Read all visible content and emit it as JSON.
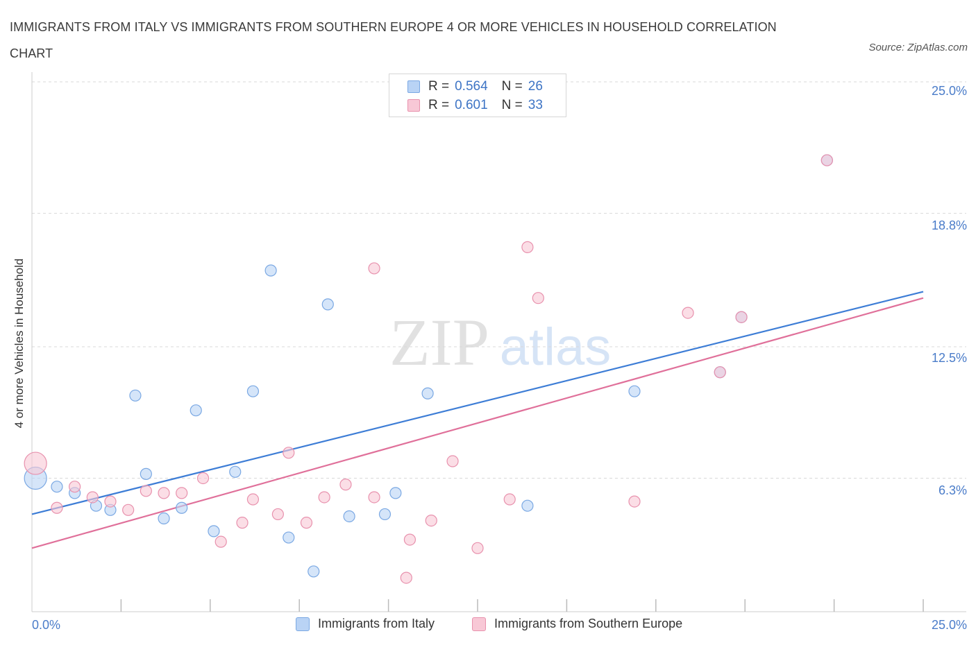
{
  "title": "IMMIGRANTS FROM ITALY VS IMMIGRANTS FROM SOUTHERN EUROPE 4 OR MORE VEHICLES IN HOUSEHOLD CORRELATION CHART",
  "source": "Source: ZipAtlas.com",
  "watermark": {
    "zip": "ZIP",
    "atlas": "atlas"
  },
  "legend_top": [
    {
      "r_label": "R =",
      "r_value": "0.564",
      "n_label": "N =",
      "n_value": "26"
    },
    {
      "r_label": "R =",
      "r_value": "0.601",
      "n_label": "N =",
      "n_value": "33"
    }
  ],
  "colors": {
    "italy_fill": "#b9d3f5",
    "italy_stroke": "#7aa8e3",
    "italy_line": "#3d7dd6",
    "se_fill": "#f8c8d6",
    "se_stroke": "#e891ad",
    "se_line": "#e0709a",
    "tick_label": "#4a7cc9",
    "grid": "#d9d9d9"
  },
  "chart_data": {
    "type": "scatter",
    "title": "IMMIGRANTS FROM ITALY VS IMMIGRANTS FROM SOUTHERN EUROPE 4 OR MORE VEHICLES IN HOUSEHOLD CORRELATION CHART",
    "xlabel": "",
    "ylabel": "4 or more Vehicles in Household",
    "xlim": [
      0,
      25
    ],
    "ylim": [
      0,
      25
    ],
    "x_tick_labels": [
      "0.0%",
      "25.0%"
    ],
    "y_ticks": [
      6.3,
      12.5,
      18.8,
      25.0
    ],
    "y_tick_labels": [
      "6.3%",
      "12.5%",
      "18.8%",
      "25.0%"
    ],
    "grid": true,
    "legend_position": "bottom",
    "series": [
      {
        "name": "Immigrants from Italy",
        "r": 0.564,
        "n": 26,
        "trend": {
          "x": [
            0,
            25
          ],
          "y": [
            4.6,
            15.1
          ]
        },
        "points": [
          {
            "x": 0.1,
            "y": 6.3,
            "big": true
          },
          {
            "x": 0.7,
            "y": 5.9
          },
          {
            "x": 1.2,
            "y": 5.6
          },
          {
            "x": 1.8,
            "y": 5.0
          },
          {
            "x": 2.2,
            "y": 4.8
          },
          {
            "x": 2.9,
            "y": 10.2
          },
          {
            "x": 3.2,
            "y": 6.5
          },
          {
            "x": 3.7,
            "y": 4.4
          },
          {
            "x": 4.2,
            "y": 4.9
          },
          {
            "x": 4.6,
            "y": 9.5
          },
          {
            "x": 5.1,
            "y": 3.8
          },
          {
            "x": 5.7,
            "y": 6.6
          },
          {
            "x": 6.2,
            "y": 10.4
          },
          {
            "x": 6.7,
            "y": 16.1
          },
          {
            "x": 7.2,
            "y": 3.5
          },
          {
            "x": 7.9,
            "y": 1.9
          },
          {
            "x": 8.3,
            "y": 14.5
          },
          {
            "x": 8.9,
            "y": 4.5
          },
          {
            "x": 9.9,
            "y": 4.6
          },
          {
            "x": 10.2,
            "y": 5.6
          },
          {
            "x": 11.1,
            "y": 10.3
          },
          {
            "x": 13.9,
            "y": 5.0
          },
          {
            "x": 16.9,
            "y": 10.4
          },
          {
            "x": 19.3,
            "y": 11.3
          },
          {
            "x": 19.9,
            "y": 13.9
          },
          {
            "x": 22.3,
            "y": 21.3
          }
        ]
      },
      {
        "name": "Immigrants from Southern Europe",
        "r": 0.601,
        "n": 33,
        "trend": {
          "x": [
            0,
            25
          ],
          "y": [
            3.0,
            14.8
          ]
        },
        "points": [
          {
            "x": 0.1,
            "y": 7.0,
            "big": true
          },
          {
            "x": 0.7,
            "y": 4.9
          },
          {
            "x": 1.2,
            "y": 5.9
          },
          {
            "x": 1.7,
            "y": 5.4
          },
          {
            "x": 2.2,
            "y": 5.2
          },
          {
            "x": 2.7,
            "y": 4.8
          },
          {
            "x": 3.2,
            "y": 5.7
          },
          {
            "x": 3.7,
            "y": 5.6
          },
          {
            "x": 4.2,
            "y": 5.6
          },
          {
            "x": 4.8,
            "y": 6.3
          },
          {
            "x": 5.3,
            "y": 3.3
          },
          {
            "x": 5.9,
            "y": 4.2
          },
          {
            "x": 6.2,
            "y": 5.3
          },
          {
            "x": 6.9,
            "y": 4.6
          },
          {
            "x": 7.2,
            "y": 7.5
          },
          {
            "x": 7.7,
            "y": 4.2
          },
          {
            "x": 8.2,
            "y": 5.4
          },
          {
            "x": 8.8,
            "y": 6.0
          },
          {
            "x": 9.6,
            "y": 5.4
          },
          {
            "x": 9.6,
            "y": 16.2
          },
          {
            "x": 10.5,
            "y": 1.6
          },
          {
            "x": 10.6,
            "y": 3.4
          },
          {
            "x": 11.2,
            "y": 4.3
          },
          {
            "x": 11.8,
            "y": 7.1
          },
          {
            "x": 12.5,
            "y": 3.0
          },
          {
            "x": 13.4,
            "y": 5.3
          },
          {
            "x": 13.9,
            "y": 17.2
          },
          {
            "x": 14.2,
            "y": 14.8
          },
          {
            "x": 16.9,
            "y": 5.2
          },
          {
            "x": 18.4,
            "y": 14.1
          },
          {
            "x": 19.3,
            "y": 11.3
          },
          {
            "x": 19.9,
            "y": 13.9
          },
          {
            "x": 22.3,
            "y": 21.3
          }
        ]
      }
    ]
  }
}
